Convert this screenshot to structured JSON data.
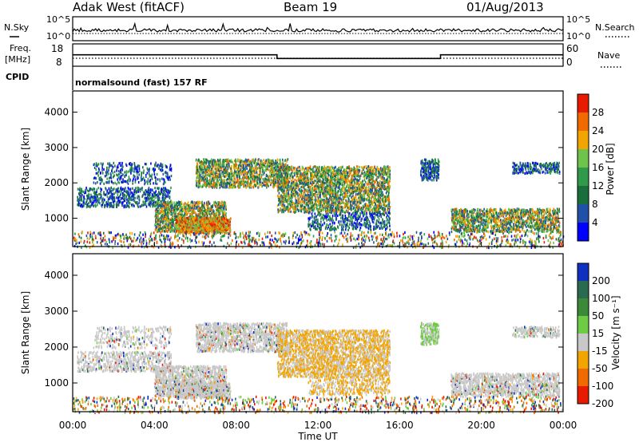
{
  "header": {
    "station": "Adak West (fitACF)",
    "beam": "Beam 19",
    "date": "01/Aug/2013"
  },
  "nsky_panel": {
    "left_label": "N.Sky",
    "right_label": "N.Search",
    "left_ticks": [
      "10^5",
      "10^0"
    ],
    "right_ticks": [
      "10^5",
      "10^0"
    ]
  },
  "freq_panel": {
    "left_label_line1": "Freq.",
    "left_label_line2": "[MHz]",
    "right_label": "Nave",
    "left_ticks": [
      "18",
      "8"
    ],
    "right_ticks": [
      "60",
      "0"
    ],
    "frequency_steps": [
      {
        "start_hour": 0,
        "end_hour": 10,
        "mhz": 14.2
      },
      {
        "start_hour": 10,
        "end_hour": 18,
        "mhz": 12.2
      },
      {
        "start_hour": 18,
        "end_hour": 24,
        "mhz": 14.2
      }
    ]
  },
  "cpid": {
    "label": "CPID",
    "text": "normalsound (fast) 157 RF"
  },
  "chart_data": [
    {
      "type": "heatmap",
      "title": "Power",
      "ylabel": "Slant Range [km]",
      "xlabel": "Time UT",
      "xlim": [
        0,
        24
      ],
      "ylim": [
        200,
        4600
      ],
      "y_ticks": [
        "1000",
        "2000",
        "3000",
        "4000"
      ],
      "colorbar_label": "Power [dB]",
      "colorbar_ticks": [
        "4",
        "8",
        "12",
        "16",
        "20",
        "24",
        "28"
      ],
      "colorbar_range": [
        0,
        32
      ],
      "colors": [
        "#0000ff",
        "#2050a8",
        "#1a6e3c",
        "#2e9a4a",
        "#6fc24a",
        "#f2a400",
        "#f06a00",
        "#e81a00"
      ]
    },
    {
      "type": "heatmap",
      "title": "Velocity",
      "ylabel": "Slant Range [km]",
      "xlabel": "Time UT",
      "xlim": [
        0,
        24
      ],
      "ylim": [
        200,
        4600
      ],
      "y_ticks": [
        "1000",
        "2000",
        "3000",
        "4000"
      ],
      "x_ticks": [
        "00:00",
        "04:00",
        "08:00",
        "12:00",
        "16:00",
        "20:00",
        "00:00"
      ],
      "colorbar_label": "Velocity [m s⁻¹]",
      "colorbar_ticks": [
        "200",
        "100",
        "50",
        "15",
        "-15",
        "-50",
        "-100",
        "-200"
      ],
      "colors": [
        "#1030c0",
        "#2a6a50",
        "#3a8a3a",
        "#6ecc44",
        "#c8c8c8",
        "#f2a400",
        "#f06a00",
        "#e81a00"
      ]
    }
  ],
  "xaxis_title": "Time UT",
  "scatter_regions": [
    {
      "t0": 0.2,
      "t1": 4.8,
      "r0": 1350,
      "r1": 1900,
      "dens": 0.32
    },
    {
      "t0": 4.0,
      "t1": 7.5,
      "r0": 650,
      "r1": 1500,
      "dens": 0.45
    },
    {
      "t0": 5.0,
      "t1": 7.7,
      "r0": 600,
      "r1": 1050,
      "dens": 0.55
    },
    {
      "t0": 1.0,
      "t1": 4.8,
      "r0": 2000,
      "r1": 2600,
      "dens": 0.18
    },
    {
      "t0": 6.0,
      "t1": 10.5,
      "r0": 1900,
      "r1": 2700,
      "dens": 0.42
    },
    {
      "t0": 10.0,
      "t1": 15.5,
      "r0": 1200,
      "r1": 2500,
      "dens": 0.4
    },
    {
      "t0": 11.5,
      "t1": 15.5,
      "r0": 700,
      "r1": 1200,
      "dens": 0.25
    },
    {
      "t0": 17.0,
      "t1": 17.9,
      "r0": 2100,
      "r1": 2700,
      "dens": 0.45
    },
    {
      "t0": 18.5,
      "t1": 23.8,
      "r0": 650,
      "r1": 1300,
      "dens": 0.4
    },
    {
      "t0": 21.5,
      "t1": 23.8,
      "r0": 2300,
      "r1": 2600,
      "dens": 0.35
    },
    {
      "t0": 0.0,
      "t1": 24.0,
      "r0": 200,
      "r1": 650,
      "dens": 0.12
    }
  ]
}
